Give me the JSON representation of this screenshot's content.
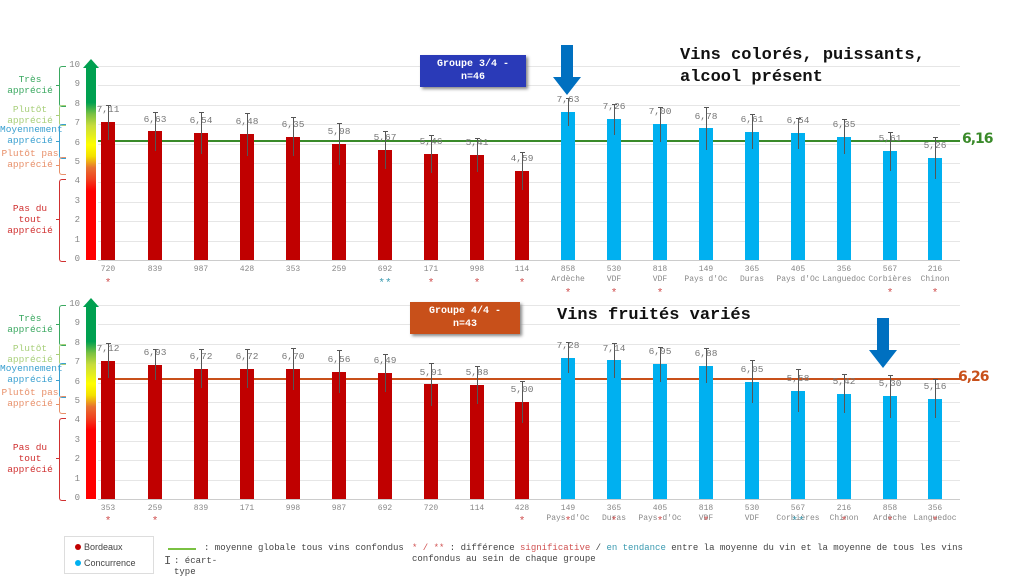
{
  "scale": {
    "ticks": [
      "0",
      "1",
      "2",
      "3",
      "4",
      "5",
      "6",
      "7",
      "8",
      "9",
      "10"
    ],
    "labels": [
      {
        "text": "Très apprécié",
        "color": "#3aa860"
      },
      {
        "text": "Plutôt apprécié",
        "color": "#a8cf7a"
      },
      {
        "text": "Moyennement apprécié",
        "color": "#3aa0d0"
      },
      {
        "text": "Plutôt pas apprécié",
        "color": "#e8906a"
      },
      {
        "text": "Pas du tout apprécié",
        "color": "#d03030"
      }
    ]
  },
  "colors": {
    "bordeaux": "#c00000",
    "concurrence": "#00b0f0",
    "group3_box": "#2a3ab8",
    "group4_box": "#c8501a",
    "mean3": "#3a8a2a",
    "mean4": "#c8501a",
    "arrow": "#0070c0",
    "star_sig": "#d05050",
    "star_trend": "#3a9ab0"
  },
  "panels": [
    {
      "group_label_line1": "Groupe 3/4 -",
      "group_label_line2": "n=46",
      "title_line1": "Vins colorés, puissants,",
      "title_line2": "alcool présent",
      "mean_label": "6,16"
    },
    {
      "group_label_line1": "Groupe 4/4 -",
      "group_label_line2": "n=43",
      "title_line1": "Vins fruités variés",
      "title_line2": "",
      "mean_label": "6,26"
    }
  ],
  "legend": {
    "bordeaux": "Bordeaux",
    "concurrence": "Concurrence",
    "mean_line": ": moyenne globale tous vins confondus",
    "error_bar": ": écart-type",
    "stars_prefix": "* / ** : différence ",
    "stars_sig": "significative",
    "stars_sep": " / ",
    "stars_trend": "en tendance",
    "stars_suffix": " entre la moyenne du vin et la moyenne de tous les vins confondus au sein de chaque groupe"
  },
  "chart_data": [
    {
      "type": "bar",
      "title": "Groupe 3/4 - n=46 — Vins colorés, puissants, alcool présent",
      "ylim": [
        0,
        10
      ],
      "grid": true,
      "mean_line": 6.16,
      "categories": [
        "720",
        "839",
        "987",
        "428",
        "353",
        "259",
        "692",
        "171",
        "998",
        "114",
        "858 Ardèche",
        "530 VDF",
        "818 VDF",
        "149 Pays d'Oc",
        "365 Duras",
        "405 Pays d'Oc",
        "356 Languedoc",
        "567 Corbières",
        "216 Chinon"
      ],
      "sublabels": [
        "",
        "",
        "",
        "",
        "",
        "",
        "",
        "",
        "",
        "",
        "Ardèche",
        "VDF",
        "VDF",
        "Pays d'Oc",
        "Duras",
        "Pays d'Oc",
        "Languedoc",
        "Corbières",
        "Chinon"
      ],
      "codes": [
        "720",
        "839",
        "987",
        "428",
        "353",
        "259",
        "692",
        "171",
        "998",
        "114",
        "858",
        "530",
        "818",
        "149",
        "365",
        "405",
        "356",
        "567",
        "216"
      ],
      "values": [
        7.11,
        6.63,
        6.54,
        6.48,
        6.35,
        5.98,
        5.67,
        5.46,
        5.41,
        4.59,
        7.63,
        7.26,
        7.0,
        6.78,
        6.61,
        6.54,
        6.35,
        5.61,
        5.26
      ],
      "value_labels": [
        "7,11",
        "6,63",
        "6,54",
        "6,48",
        "6,35",
        "5,98",
        "5,67",
        "5,46",
        "5,41",
        "4,59",
        "7,63",
        "7,26",
        "7,00",
        "6,78",
        "6,61",
        "6,54",
        "6,35",
        "5,61",
        "5,26"
      ],
      "errors": [
        0.9,
        1.0,
        1.1,
        1.1,
        1.0,
        1.1,
        1.0,
        1.0,
        0.9,
        1.0,
        0.7,
        0.8,
        0.9,
        1.1,
        0.9,
        0.8,
        0.9,
        1.0,
        1.1
      ],
      "series_type": [
        "Bordeaux",
        "Bordeaux",
        "Bordeaux",
        "Bordeaux",
        "Bordeaux",
        "Bordeaux",
        "Bordeaux",
        "Bordeaux",
        "Bordeaux",
        "Bordeaux",
        "Concurrence",
        "Concurrence",
        "Concurrence",
        "Concurrence",
        "Concurrence",
        "Concurrence",
        "Concurrence",
        "Concurrence",
        "Concurrence"
      ],
      "significance": [
        "*",
        "",
        "",
        "",
        "",
        "",
        "**",
        "*",
        "*",
        "*",
        "*",
        "*",
        "*",
        "",
        "",
        "",
        "",
        "*",
        "*"
      ],
      "highlight_arrow_index": 10
    },
    {
      "type": "bar",
      "title": "Groupe 4/4 - n=43 — Vins fruités variés",
      "ylim": [
        0,
        10
      ],
      "grid": true,
      "mean_line": 6.26,
      "categories": [
        "353",
        "259",
        "839",
        "171",
        "998",
        "987",
        "692",
        "720",
        "114",
        "428",
        "149 Pays d'Oc",
        "365 Duras",
        "405 Pays d'Oc",
        "818 VDF",
        "530 VDF",
        "567 Corbières",
        "216 Chinon",
        "858 Ardèche",
        "356 Languedoc"
      ],
      "sublabels": [
        "",
        "",
        "",
        "",
        "",
        "",
        "",
        "",
        "",
        "",
        "Pays d'Oc",
        "Duras",
        "Pays d'Oc",
        "VDF",
        "VDF",
        "Corbières",
        "Chinon",
        "Ardèche",
        "Languedoc"
      ],
      "codes": [
        "353",
        "259",
        "839",
        "171",
        "998",
        "987",
        "692",
        "720",
        "114",
        "428",
        "149",
        "365",
        "405",
        "818",
        "530",
        "567",
        "216",
        "858",
        "356"
      ],
      "values": [
        7.12,
        6.93,
        6.72,
        6.72,
        6.7,
        6.56,
        6.49,
        5.91,
        5.88,
        5.0,
        7.28,
        7.14,
        6.95,
        6.88,
        6.05,
        5.58,
        5.42,
        5.3,
        5.16
      ],
      "value_labels": [
        "7,12",
        "6,93",
        "6,72",
        "6,72",
        "6,70",
        "6,56",
        "6,49",
        "5,91",
        "5,88",
        "5,00",
        "7,28",
        "7,14",
        "6,95",
        "6,88",
        "6,05",
        "5,58",
        "5,42",
        "5,30",
        "5,16"
      ],
      "errors": [
        0.9,
        0.8,
        1.0,
        1.0,
        1.1,
        1.1,
        1.0,
        1.1,
        1.0,
        1.1,
        0.8,
        0.9,
        0.9,
        0.9,
        1.1,
        1.1,
        1.0,
        1.1,
        1.0
      ],
      "series_type": [
        "Bordeaux",
        "Bordeaux",
        "Bordeaux",
        "Bordeaux",
        "Bordeaux",
        "Bordeaux",
        "Bordeaux",
        "Bordeaux",
        "Bordeaux",
        "Bordeaux",
        "Concurrence",
        "Concurrence",
        "Concurrence",
        "Concurrence",
        "Concurrence",
        "Concurrence",
        "Concurrence",
        "Concurrence",
        "Concurrence"
      ],
      "significance": [
        "*",
        "*",
        "",
        "",
        "",
        "",
        "",
        "",
        "",
        "*",
        "*",
        "*",
        "*",
        "*",
        "",
        "**",
        "*",
        "*",
        "*"
      ],
      "highlight_arrow_index": 17
    }
  ]
}
